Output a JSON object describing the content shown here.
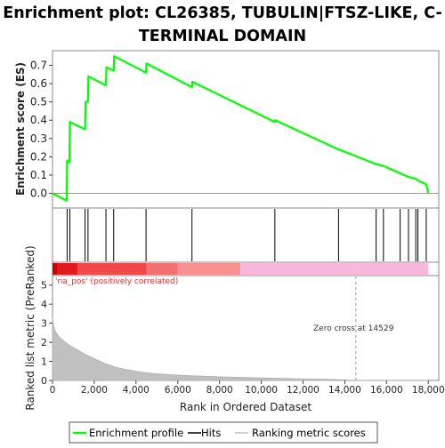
{
  "chart_data": {
    "type": "line",
    "title_lines": [
      "Enrichment plot: CL26385, TUBULIN|FTSZ-LIKE, C-",
      "TERMINAL DOMAIN"
    ],
    "top_panel": {
      "ylabel": "Enrichment score (ES)",
      "ylim": [
        -0.08,
        0.78
      ],
      "yticks": [
        0.0,
        0.1,
        0.2,
        0.3,
        0.4,
        0.5,
        0.6,
        0.7
      ],
      "ytick_labels": [
        "0.0",
        "0.1",
        "0.2",
        "0.3",
        "0.4",
        "0.5",
        "0.6",
        "0.7"
      ],
      "line_color": "#00ff00",
      "profile": [
        [
          0,
          0.0
        ],
        [
          680,
          -0.04
        ],
        [
          700,
          0.18
        ],
        [
          810,
          0.17
        ],
        [
          830,
          0.39
        ],
        [
          1560,
          0.35
        ],
        [
          1580,
          0.5
        ],
        [
          1700,
          0.5
        ],
        [
          1720,
          0.64
        ],
        [
          2560,
          0.59
        ],
        [
          2580,
          0.69
        ],
        [
          2930,
          0.67
        ],
        [
          2950,
          0.75
        ],
        [
          4480,
          0.66
        ],
        [
          4500,
          0.71
        ],
        [
          6680,
          0.58
        ],
        [
          6700,
          0.61
        ],
        [
          10650,
          0.39
        ],
        [
          10670,
          0.4
        ],
        [
          13700,
          0.24
        ],
        [
          13720,
          0.24
        ],
        [
          15500,
          0.16
        ],
        [
          15850,
          0.15
        ],
        [
          16650,
          0.11
        ],
        [
          17050,
          0.09
        ],
        [
          17400,
          0.08
        ],
        [
          17500,
          0.07
        ],
        [
          17900,
          0.05
        ],
        [
          18000,
          0.0
        ]
      ]
    },
    "hits_panel": {
      "hit_ranks": [
        700,
        830,
        1560,
        1700,
        2560,
        2930,
        4480,
        6680,
        10650,
        13700,
        15500,
        15850,
        16650,
        17050,
        17400,
        17500,
        17900
      ]
    },
    "bar_panel": {
      "segments": [
        {
          "start": 0,
          "end": 250,
          "color": "#cc0000"
        },
        {
          "start": 250,
          "end": 1200,
          "color": "#e31a1c"
        },
        {
          "start": 1200,
          "end": 4500,
          "color": "#f04848"
        },
        {
          "start": 4500,
          "end": 6000,
          "color": "#f47070"
        },
        {
          "start": 6000,
          "end": 9000,
          "color": "#f89090"
        },
        {
          "start": 9000,
          "end": 18000,
          "color": "#f8b8dc"
        }
      ]
    },
    "bottom_panel": {
      "ylabel": "Ranked list metric (PreRanked)",
      "xlabel": "Rank in Ordered Dataset",
      "ylim": [
        0,
        5.5
      ],
      "yticks": [
        0,
        1,
        2,
        3,
        4,
        5
      ],
      "ytick_labels": [
        "0",
        "1",
        "2",
        "3",
        "4",
        "5"
      ],
      "xlim": [
        0,
        18500
      ],
      "xticks": [
        0,
        2000,
        4000,
        6000,
        8000,
        10000,
        12000,
        14000,
        16000,
        18000
      ],
      "xtick_labels": [
        "0",
        "2,000",
        "4,000",
        "6,000",
        "8,000",
        "10,000",
        "12,000",
        "14,000",
        "16,000",
        "18,000"
      ],
      "metric_curve": [
        [
          0,
          3.3
        ],
        [
          50,
          2.85
        ],
        [
          150,
          2.55
        ],
        [
          300,
          2.3
        ],
        [
          500,
          2.1
        ],
        [
          800,
          1.85
        ],
        [
          1200,
          1.6
        ],
        [
          1600,
          1.35
        ],
        [
          2000,
          1.15
        ],
        [
          2500,
          0.9
        ],
        [
          3000,
          0.7
        ],
        [
          3500,
          0.58
        ],
        [
          4000,
          0.48
        ],
        [
          4500,
          0.4
        ],
        [
          5000,
          0.35
        ],
        [
          6000,
          0.28
        ],
        [
          7000,
          0.23
        ],
        [
          8000,
          0.19
        ],
        [
          9000,
          0.16
        ],
        [
          10000,
          0.13
        ],
        [
          11000,
          0.11
        ],
        [
          12000,
          0.08
        ],
        [
          13000,
          0.06
        ],
        [
          14000,
          0.03
        ],
        [
          14529,
          0.0
        ],
        [
          15000,
          0.0
        ],
        [
          18000,
          0.0
        ]
      ],
      "pos_annotation": "'na_pos' (positively correlated)",
      "zero_cross_label": "Zero cross at 14529",
      "zero_cross_rank": 14529
    },
    "legend": {
      "items": [
        {
          "label": "Enrichment profile",
          "color": "#00ff00"
        },
        {
          "label": "Hits",
          "color": "#000000"
        },
        {
          "label": "Ranking metric scores",
          "color": "#c0c0c0"
        }
      ]
    }
  }
}
